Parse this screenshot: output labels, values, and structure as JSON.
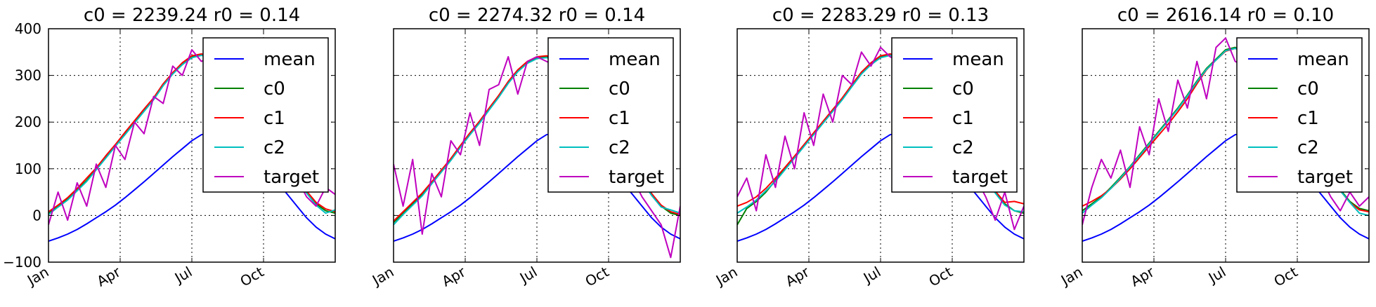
{
  "chart_data": [
    {
      "type": "line",
      "title": "c0 = 2239.24 r0 = 0.14",
      "xticks": [
        "Jan",
        "Apr",
        "Jul",
        "Oct"
      ],
      "yticks": [
        "400",
        "300",
        "200",
        "100",
        "0",
        "−100"
      ],
      "ylim": [
        -100,
        400
      ],
      "grid": true,
      "legend": "upper right",
      "series": [
        {
          "name": "mean",
          "color": "#0000ff",
          "values": [
            -55,
            -48,
            -40,
            -30,
            -18,
            -5,
            8,
            22,
            38,
            55,
            72,
            90,
            108,
            126,
            143,
            160,
            173,
            177,
            175,
            168,
            155,
            138,
            118,
            95,
            70,
            45,
            20,
            -5,
            -25,
            -40,
            -50
          ]
        },
        {
          "name": "c0",
          "color": "#008000",
          "values": [
            5,
            20,
            35,
            55,
            75,
            100,
            125,
            150,
            175,
            200,
            225,
            250,
            280,
            305,
            325,
            340,
            345,
            340,
            330,
            310,
            285,
            255,
            220,
            185,
            150,
            115,
            80,
            50,
            25,
            10,
            5
          ]
        },
        {
          "name": "c1",
          "color": "#ff0000",
          "values": [
            8,
            22,
            38,
            58,
            80,
            102,
            128,
            152,
            178,
            203,
            228,
            252,
            282,
            306,
            327,
            342,
            346,
            341,
            331,
            311,
            286,
            256,
            221,
            186,
            151,
            116,
            82,
            52,
            28,
            14,
            8
          ]
        },
        {
          "name": "c2",
          "color": "#00bfbf",
          "values": [
            2,
            18,
            33,
            53,
            73,
            98,
            123,
            148,
            173,
            198,
            223,
            248,
            278,
            303,
            323,
            338,
            343,
            338,
            328,
            308,
            283,
            253,
            218,
            183,
            148,
            113,
            78,
            48,
            22,
            5,
            12
          ]
        },
        {
          "name": "target",
          "color": "#bf00bf",
          "values": [
            -20,
            50,
            -10,
            70,
            20,
            110,
            60,
            150,
            120,
            200,
            175,
            255,
            240,
            320,
            300,
            355,
            330,
            340,
            320,
            300,
            280,
            250,
            210,
            170,
            140,
            110,
            80,
            40,
            20,
            60,
            45
          ]
        }
      ]
    },
    {
      "type": "line",
      "title": "c0 = 2274.32 r0 = 0.14",
      "xticks": [
        "Jan",
        "Apr",
        "Jul",
        "Oct"
      ],
      "ylim": [
        -100,
        400
      ],
      "grid": true,
      "legend": "upper right",
      "series": [
        {
          "name": "mean",
          "color": "#0000ff",
          "values": [
            -55,
            -48,
            -40,
            -30,
            -18,
            -5,
            8,
            22,
            38,
            55,
            72,
            90,
            108,
            126,
            143,
            160,
            173,
            177,
            175,
            168,
            155,
            138,
            118,
            95,
            70,
            45,
            20,
            -5,
            -25,
            -40,
            -50
          ]
        },
        {
          "name": "c0",
          "color": "#008000",
          "values": [
            -15,
            5,
            25,
            45,
            70,
            95,
            120,
            148,
            175,
            200,
            228,
            255,
            285,
            310,
            328,
            338,
            340,
            335,
            325,
            305,
            280,
            250,
            215,
            180,
            145,
            110,
            75,
            45,
            20,
            5,
            0
          ]
        },
        {
          "name": "c1",
          "color": "#ff0000",
          "values": [
            -12,
            8,
            28,
            48,
            72,
            97,
            122,
            150,
            177,
            202,
            230,
            257,
            287,
            312,
            330,
            340,
            342,
            337,
            327,
            307,
            282,
            252,
            217,
            182,
            147,
            112,
            77,
            47,
            22,
            8,
            2
          ]
        },
        {
          "name": "c2",
          "color": "#00bfbf",
          "values": [
            -20,
            2,
            22,
            42,
            68,
            93,
            118,
            146,
            173,
            198,
            226,
            253,
            283,
            308,
            326,
            336,
            338,
            333,
            323,
            303,
            278,
            248,
            213,
            178,
            143,
            108,
            73,
            43,
            18,
            12,
            5
          ]
        },
        {
          "name": "target",
          "color": "#bf00bf",
          "values": [
            110,
            20,
            120,
            -40,
            90,
            40,
            160,
            130,
            220,
            150,
            270,
            280,
            340,
            260,
            330,
            340,
            330,
            320,
            300,
            280,
            250,
            220,
            190,
            150,
            110,
            80,
            40,
            10,
            -20,
            -90,
            20
          ]
        }
      ]
    },
    {
      "type": "line",
      "title": "c0 = 2283.29 r0 = 0.13",
      "xticks": [
        "Jan",
        "Apr",
        "Jul",
        "Oct"
      ],
      "ylim": [
        -100,
        400
      ],
      "grid": true,
      "legend": "upper right",
      "series": [
        {
          "name": "mean",
          "color": "#0000ff",
          "values": [
            -55,
            -48,
            -40,
            -30,
            -18,
            -5,
            8,
            22,
            38,
            55,
            72,
            90,
            108,
            126,
            143,
            160,
            173,
            177,
            175,
            168,
            155,
            138,
            118,
            95,
            70,
            45,
            20,
            -5,
            -25,
            -40,
            -50
          ]
        },
        {
          "name": "c0",
          "color": "#008000",
          "values": [
            -20,
            15,
            30,
            50,
            75,
            100,
            125,
            150,
            175,
            200,
            225,
            250,
            278,
            305,
            325,
            340,
            345,
            340,
            330,
            310,
            285,
            255,
            220,
            185,
            150,
            115,
            80,
            50,
            25,
            10,
            5
          ]
        },
        {
          "name": "c1",
          "color": "#ff0000",
          "values": [
            20,
            28,
            40,
            58,
            80,
            103,
            127,
            152,
            177,
            202,
            227,
            252,
            280,
            307,
            327,
            342,
            346,
            341,
            331,
            311,
            286,
            256,
            221,
            186,
            151,
            116,
            82,
            52,
            28,
            30,
            25
          ]
        },
        {
          "name": "c2",
          "color": "#00bfbf",
          "values": [
            5,
            18,
            33,
            53,
            73,
            98,
            123,
            148,
            173,
            198,
            223,
            248,
            276,
            303,
            323,
            338,
            343,
            338,
            328,
            308,
            283,
            253,
            218,
            183,
            148,
            113,
            78,
            48,
            22,
            10,
            8
          ]
        },
        {
          "name": "target",
          "color": "#bf00bf",
          "values": [
            40,
            80,
            10,
            130,
            60,
            170,
            100,
            220,
            150,
            260,
            200,
            300,
            280,
            350,
            320,
            360,
            340,
            330,
            320,
            300,
            270,
            240,
            200,
            160,
            120,
            80,
            40,
            -10,
            50,
            -30,
            20
          ]
        }
      ]
    },
    {
      "type": "line",
      "title": "c0 = 2616.14 r0 = 0.10",
      "xticks": [
        "Jan",
        "Apr",
        "Jul",
        "Oct"
      ],
      "ylim": [
        -100,
        400
      ],
      "grid": true,
      "legend": "upper right",
      "series": [
        {
          "name": "mean",
          "color": "#0000ff",
          "values": [
            -55,
            -48,
            -40,
            -30,
            -18,
            -5,
            8,
            22,
            38,
            55,
            72,
            90,
            108,
            126,
            143,
            160,
            173,
            177,
            175,
            168,
            155,
            138,
            118,
            95,
            70,
            45,
            20,
            -5,
            -25,
            -40,
            -50
          ]
        },
        {
          "name": "c0",
          "color": "#008000",
          "values": [
            10,
            25,
            40,
            60,
            82,
            105,
            130,
            155,
            180,
            205,
            230,
            258,
            288,
            315,
            335,
            355,
            360,
            350,
            335,
            315,
            290,
            260,
            225,
            190,
            155,
            120,
            85,
            55,
            30,
            15,
            10
          ]
        },
        {
          "name": "c1",
          "color": "#ff0000",
          "values": [
            20,
            30,
            42,
            58,
            78,
            100,
            124,
            148,
            172,
            196,
            222,
            250,
            282,
            312,
            333,
            352,
            358,
            348,
            333,
            313,
            288,
            258,
            223,
            188,
            153,
            118,
            83,
            53,
            28,
            12,
            8
          ]
        },
        {
          "name": "c2",
          "color": "#00bfbf",
          "values": [
            5,
            22,
            38,
            58,
            80,
            104,
            128,
            153,
            178,
            203,
            228,
            256,
            286,
            313,
            333,
            353,
            358,
            348,
            333,
            313,
            288,
            258,
            223,
            188,
            153,
            118,
            83,
            53,
            28,
            5,
            0
          ]
        },
        {
          "name": "target",
          "color": "#bf00bf",
          "values": [
            -20,
            60,
            120,
            80,
            140,
            60,
            190,
            130,
            250,
            180,
            290,
            230,
            330,
            250,
            360,
            380,
            330,
            320,
            310,
            290,
            270,
            240,
            200,
            160,
            120,
            80,
            40,
            10,
            50,
            20,
            40
          ]
        }
      ]
    }
  ]
}
